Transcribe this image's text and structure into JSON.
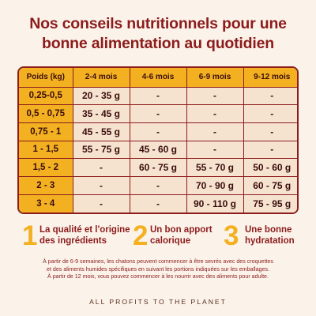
{
  "title_line1": "Nos conseils nutritionnels pour une",
  "title_line2": "bonne alimentation au quotidien",
  "table": {
    "headers": [
      "Poids (kg)",
      "2-4 mois",
      "4-6 mois",
      "6-9 mois",
      "9-12 mois"
    ],
    "rows": [
      [
        "0,25-0,5",
        "20 - 35 g",
        "-",
        "-",
        "-"
      ],
      [
        "0,5 - 0,75",
        "35 - 45 g",
        "-",
        "-",
        "-"
      ],
      [
        "0,75 - 1",
        "45 - 55 g",
        "-",
        "-",
        "-"
      ],
      [
        "1 - 1,5",
        "55 - 75 g",
        "45 - 60 g",
        "-",
        "-"
      ],
      [
        "1,5 - 2",
        "-",
        "60 - 75 g",
        "55 - 70 g",
        "50 - 60 g"
      ],
      [
        "2 - 3",
        "-",
        "-",
        "70 - 90 g",
        "60 - 75 g"
      ],
      [
        "3 - 4",
        "-",
        "-",
        "90 - 110 g",
        "75 - 95 g"
      ]
    ]
  },
  "features": [
    {
      "number": "1",
      "line1": "La qualité et l'origine",
      "line2": "des ingrédients"
    },
    {
      "number": "2",
      "line1": "Un bon apport",
      "line2": "calorique"
    },
    {
      "number": "3",
      "line1": "Une bonne",
      "line2": "hydratation"
    }
  ],
  "note_line1": "À partir de 6-9 semaines, les chatons peuvent commencer à être sevrés avec des croquettes",
  "note_line2": "et des aliments humides spécifiques en suivant les portions indiquées sur les emballages.",
  "note_line3": "À partir de 12 mois, vous pouvez commencer à les nourrir avec des aliments pour adulte.",
  "footer": "ALL PROFITS TO THE PLANET",
  "colors": {
    "primary": "#8c1c1c",
    "accent": "#f3b122",
    "cell": "#f6e3cf",
    "background": "#fbf3ea"
  }
}
